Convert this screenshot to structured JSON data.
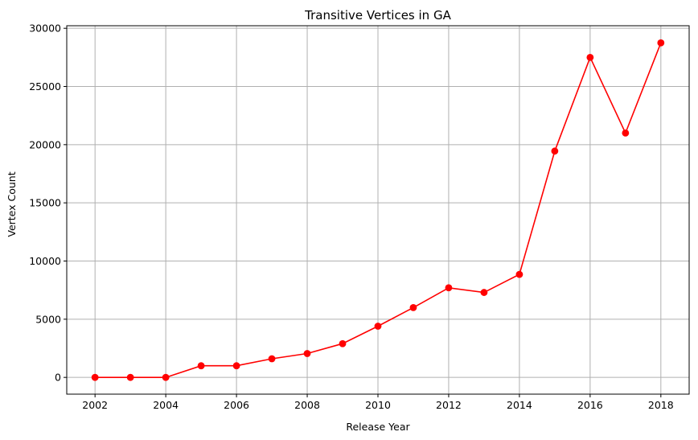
{
  "chart_data": {
    "type": "line",
    "title": "Transitive Vertices in GA",
    "xlabel": "Release Year",
    "ylabel": "Vertex Count",
    "x": [
      2002,
      2003,
      2004,
      2005,
      2006,
      2007,
      2008,
      2009,
      2010,
      2011,
      2012,
      2013,
      2014,
      2015,
      2016,
      2017,
      2018
    ],
    "series": [
      {
        "values": [
          0,
          0,
          0,
          1000,
          1000,
          1600,
          2050,
          2900,
          4400,
          6000,
          7700,
          7300,
          8850,
          19450,
          27500,
          21000,
          28750
        ],
        "color": "#ff0000",
        "marker": "circle"
      }
    ],
    "xlim": [
      2001.2,
      2018.8
    ],
    "ylim": [
      -1440,
      30220
    ],
    "xticks": [
      2002,
      2004,
      2006,
      2008,
      2010,
      2012,
      2014,
      2016,
      2018
    ],
    "yticks": [
      0,
      5000,
      10000,
      15000,
      20000,
      25000,
      30000
    ],
    "grid": true
  }
}
